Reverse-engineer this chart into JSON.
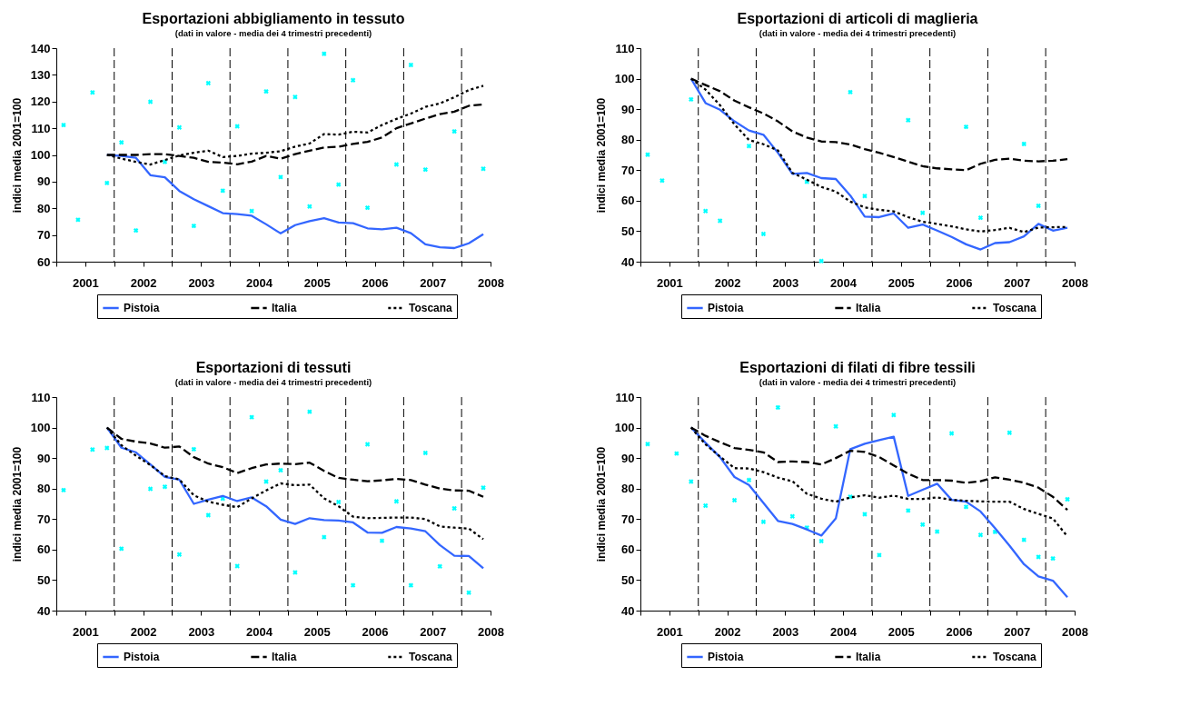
{
  "chart_data": [
    {
      "type": "line",
      "title": "Esportazioni abbigliamento in tessuto",
      "subtitle": "(dati in valore - media dei 4 trimestri precedenti)",
      "ylabel": "indici media 2001=100",
      "x": [
        2000.625,
        2000.875,
        2001.125,
        2001.375,
        2001.625,
        2001.875,
        2002.125,
        2002.375,
        2002.625,
        2002.875,
        2003.125,
        2003.375,
        2003.625,
        2003.875,
        2004.125,
        2004.375,
        2004.625,
        2004.875,
        2005.125,
        2005.375,
        2005.625,
        2005.875,
        2006.125,
        2006.375,
        2006.625,
        2006.875,
        2007.125,
        2007.375,
        2007.625,
        2007.875
      ],
      "xlim": [
        2000.5,
        2008
      ],
      "xticks": [
        {
          "value": 2000.5,
          "label": null
        },
        2001,
        {
          "value": 2001.5,
          "label": null
        },
        2002,
        {
          "value": 2002.5,
          "label": null
        },
        2003,
        {
          "value": 2003.5,
          "label": null
        },
        2004,
        {
          "value": 2004.5,
          "label": null
        },
        2005,
        {
          "value": 2005.5,
          "label": null
        },
        2006,
        {
          "value": 2006.5,
          "label": null
        },
        2007,
        {
          "value": 2007.5,
          "label": null
        },
        2008
      ],
      "ylim": [
        60,
        140
      ],
      "yticks": [
        60,
        70,
        80,
        90,
        100,
        110,
        120,
        130,
        140
      ],
      "ref_lines": [
        {
          "axis": "x",
          "value": 2001.5,
          "color": "#000000",
          "line_style": "dashed"
        },
        {
          "axis": "x",
          "value": 2002.5,
          "color": "#000000",
          "line_style": "dashed"
        },
        {
          "axis": "x",
          "value": 2003.5,
          "color": "#000000",
          "line_style": "dashed"
        },
        {
          "axis": "x",
          "value": 2004.5,
          "color": "#000000",
          "line_style": "dashed"
        },
        {
          "axis": "x",
          "value": 2005.5,
          "color": "#000000",
          "line_style": "dashed"
        },
        {
          "axis": "x",
          "value": 2006.5,
          "color": "#000000",
          "line_style": "dashed"
        },
        {
          "axis": "x",
          "value": 2007.5,
          "color": "#000000",
          "line_style": "dashed"
        }
      ],
      "legend": "bottom",
      "series": [
        {
          "type": "scatter",
          "color": "#00ffff",
          "marker": "cross",
          "values": [
            111.2,
            75.7,
            123.4,
            89.5,
            104.7,
            71.7,
            119.9,
            97.4,
            110.3,
            73.4,
            126.9,
            86.6,
            110.7,
            79,
            123.8,
            91.7,
            121.7,
            80.7,
            137.9,
            88.9,
            128,
            80.2,
            null,
            96.4,
            133.7,
            94.5,
            null,
            108.8,
            null,
            94.8
          ]
        },
        {
          "name": "Pistoia",
          "color": "#3366ff",
          "line_style": "solid",
          "values": [
            null,
            null,
            null,
            100,
            99.6,
            98.9,
            92.4,
            91.6,
            86.5,
            83.4,
            80.8,
            78.2,
            77.8,
            77.2,
            74,
            70.6,
            73.7,
            75.2,
            76.3,
            74.7,
            74.4,
            72.5,
            72.1,
            72.7,
            70.7,
            66.5,
            65.4,
            65.1,
            66.9,
            70.3
          ]
        },
        {
          "name": "Italia",
          "color": "#000000",
          "line_style": "dashed",
          "values": [
            null,
            null,
            null,
            100,
            100,
            100,
            100.3,
            100.3,
            99.6,
            98.9,
            97.4,
            97.1,
            96.5,
            97.5,
            99.6,
            98.6,
            100.3,
            101.6,
            102.8,
            103.1,
            104.1,
            104.9,
            106.5,
            110,
            111.8,
            113.6,
            115.3,
            116.2,
            118.4,
            118.9
          ]
        },
        {
          "name": "Toscana",
          "color": "#000000",
          "line_style": "dotted",
          "values": [
            null,
            null,
            null,
            100,
            98.6,
            97.4,
            96.4,
            98.1,
            99.8,
            100.8,
            101.6,
            99.2,
            99.6,
            100.5,
            100.8,
            101.4,
            103.1,
            104.3,
            107.8,
            107.6,
            108.7,
            108.4,
            111.2,
            113.5,
            115.5,
            118,
            119.3,
            121.6,
            124.3,
            125.9
          ]
        }
      ]
    },
    {
      "type": "line",
      "title": "Esportazioni di articoli di maglieria",
      "subtitle": "(dati in valore - media dei 4 trimestri precedenti)",
      "ylabel": "indici media 2001=100",
      "x": [
        2000.625,
        2000.875,
        2001.125,
        2001.375,
        2001.625,
        2001.875,
        2002.125,
        2002.375,
        2002.625,
        2002.875,
        2003.125,
        2003.375,
        2003.625,
        2003.875,
        2004.125,
        2004.375,
        2004.625,
        2004.875,
        2005.125,
        2005.375,
        2005.625,
        2005.875,
        2006.125,
        2006.375,
        2006.625,
        2006.875,
        2007.125,
        2007.375,
        2007.625,
        2007.875
      ],
      "xlim": [
        2000.5,
        2008
      ],
      "xticks": [
        {
          "value": 2000.5,
          "label": null
        },
        2001,
        {
          "value": 2001.5,
          "label": null
        },
        2002,
        {
          "value": 2002.5,
          "label": null
        },
        2003,
        {
          "value": 2003.5,
          "label": null
        },
        2004,
        {
          "value": 2004.5,
          "label": null
        },
        2005,
        {
          "value": 2005.5,
          "label": null
        },
        2006,
        {
          "value": 2006.5,
          "label": null
        },
        2007,
        {
          "value": 2007.5,
          "label": null
        },
        2008
      ],
      "ylim": [
        40,
        110
      ],
      "yticks": [
        40,
        50,
        60,
        70,
        80,
        90,
        100,
        110
      ],
      "ref_lines": [
        {
          "axis": "x",
          "value": 2001.5,
          "color": "#000000",
          "line_style": "dashed"
        },
        {
          "axis": "x",
          "value": 2002.5,
          "color": "#000000",
          "line_style": "dashed"
        },
        {
          "axis": "x",
          "value": 2003.5,
          "color": "#000000",
          "line_style": "dashed"
        },
        {
          "axis": "x",
          "value": 2004.5,
          "color": "#000000",
          "line_style": "dashed"
        },
        {
          "axis": "x",
          "value": 2005.5,
          "color": "#000000",
          "line_style": "dashed"
        },
        {
          "axis": "x",
          "value": 2006.5,
          "color": "#000000",
          "line_style": "dashed"
        },
        {
          "axis": "x",
          "value": 2007.5,
          "color": "#000000",
          "line_style": "dashed"
        }
      ],
      "legend": "bottom",
      "series": [
        {
          "type": "scatter",
          "color": "#00ffff",
          "marker": "cross",
          "values": [
            75.1,
            66.6,
            null,
            93.2,
            56.6,
            53.4,
            null,
            77.9,
            49.1,
            null,
            null,
            66.2,
            40.2,
            null,
            95.6,
            61.5,
            null,
            null,
            86.4,
            56,
            null,
            null,
            84.2,
            54.4,
            null,
            null,
            78.6,
            58.3,
            null,
            null
          ]
        },
        {
          "name": "Pistoia",
          "color": "#3366ff",
          "line_style": "solid",
          "values": [
            null,
            null,
            null,
            100,
            92,
            89.8,
            86,
            83,
            81.6,
            75.7,
            68.8,
            69.1,
            67.4,
            67.1,
            61.7,
            54.8,
            54.6,
            55.8,
            51.1,
            52.2,
            50.2,
            48.1,
            45.7,
            44,
            46.1,
            46.4,
            48.3,
            52.4,
            50.2,
            51.1
          ]
        },
        {
          "name": "Italia",
          "color": "#000000",
          "line_style": "dashed",
          "values": [
            null,
            null,
            null,
            100,
            97.9,
            95.9,
            92.8,
            90.6,
            88.6,
            86,
            82.7,
            80.7,
            79.4,
            79.2,
            78.4,
            76.9,
            75.7,
            74.3,
            72.8,
            71.3,
            70.6,
            70.3,
            70,
            72.1,
            73.4,
            73.8,
            73.1,
            72.9,
            73.1,
            73.6
          ]
        },
        {
          "name": "Toscana",
          "color": "#000000",
          "line_style": "dotted",
          "values": [
            null,
            null,
            null,
            100,
            96.4,
            91.3,
            85,
            79.9,
            78.5,
            76.5,
            69.1,
            66.9,
            64.5,
            63,
            59.7,
            57.8,
            57,
            56.5,
            54.6,
            53.1,
            52.4,
            51.6,
            50.6,
            49.9,
            50.4,
            51.1,
            49.7,
            51.2,
            51.3,
            51.4
          ]
        }
      ]
    },
    {
      "type": "line",
      "title": "Esportazioni di tessuti",
      "subtitle": "(dati in valore - media dei 4 trimestri precedenti)",
      "ylabel": "indici media 2001=100",
      "x": [
        2000.625,
        2000.875,
        2001.125,
        2001.375,
        2001.625,
        2001.875,
        2002.125,
        2002.375,
        2002.625,
        2002.875,
        2003.125,
        2003.375,
        2003.625,
        2003.875,
        2004.125,
        2004.375,
        2004.625,
        2004.875,
        2005.125,
        2005.375,
        2005.625,
        2005.875,
        2006.125,
        2006.375,
        2006.625,
        2006.875,
        2007.125,
        2007.375,
        2007.625,
        2007.875
      ],
      "xlim": [
        2000.5,
        2008
      ],
      "xticks": [
        {
          "value": 2000.5,
          "label": null
        },
        2001,
        {
          "value": 2001.5,
          "label": null
        },
        2002,
        {
          "value": 2002.5,
          "label": null
        },
        2003,
        {
          "value": 2003.5,
          "label": null
        },
        2004,
        {
          "value": 2004.5,
          "label": null
        },
        2005,
        {
          "value": 2005.5,
          "label": null
        },
        2006,
        {
          "value": 2006.5,
          "label": null
        },
        2007,
        {
          "value": 2007.5,
          "label": null
        },
        2008
      ],
      "ylim": [
        40,
        110
      ],
      "yticks": [
        40,
        50,
        60,
        70,
        80,
        90,
        100,
        110
      ],
      "ref_lines": [
        {
          "axis": "x",
          "value": 2001.5,
          "color": "#000000",
          "line_style": "dashed"
        },
        {
          "axis": "x",
          "value": 2002.5,
          "color": "#000000",
          "line_style": "dashed"
        },
        {
          "axis": "x",
          "value": 2003.5,
          "color": "#000000",
          "line_style": "dashed"
        },
        {
          "axis": "x",
          "value": 2004.5,
          "color": "#000000",
          "line_style": "dashed"
        },
        {
          "axis": "x",
          "value": 2005.5,
          "color": "#000000",
          "line_style": "dashed"
        },
        {
          "axis": "x",
          "value": 2006.5,
          "color": "#000000",
          "line_style": "dashed"
        },
        {
          "axis": "x",
          "value": 2007.5,
          "color": "#000000",
          "line_style": "dashed"
        }
      ],
      "legend": "bottom",
      "series": [
        {
          "type": "scatter",
          "color": "#00ffff",
          "marker": "cross",
          "values": [
            79.5,
            null,
            92.8,
            93.3,
            60.3,
            null,
            79.9,
            80.6,
            58.4,
            92.9,
            71.3,
            76.7,
            54.6,
            103.4,
            82.3,
            86,
            52.5,
            105.2,
            64.1,
            75.6,
            48.3,
            94.5,
            62.9,
            75.8,
            48.3,
            91.7,
            54.5,
            73.5,
            45.9,
            80.3
          ]
        },
        {
          "name": "Pistoia",
          "color": "#3366ff",
          "line_style": "solid",
          "values": [
            null,
            null,
            null,
            100,
            93.4,
            91.9,
            87.9,
            83.8,
            82.9,
            75,
            76.4,
            77.6,
            75.9,
            77.1,
            74.2,
            69.8,
            68.4,
            70.3,
            69.7,
            69.5,
            68.9,
            65.6,
            65.5,
            67.4,
            66.9,
            66,
            61.5,
            58,
            57.9,
            53.9
          ]
        },
        {
          "name": "Italia",
          "color": "#000000",
          "line_style": "dashed",
          "values": [
            null,
            null,
            null,
            100,
            96.3,
            95.4,
            94.8,
            93.4,
            93.8,
            90.3,
            88.2,
            87,
            85.1,
            86.7,
            87.9,
            88.2,
            88,
            88.5,
            85.8,
            83.5,
            82.9,
            82.4,
            82.7,
            83.2,
            82.8,
            81.3,
            80,
            79.4,
            79.3,
            77.3
          ]
        },
        {
          "name": "Toscana",
          "color": "#000000",
          "line_style": "dotted",
          "values": [
            null,
            null,
            null,
            100,
            94.2,
            90.8,
            87.7,
            84.1,
            83,
            77.8,
            75.7,
            74.7,
            73.9,
            76.8,
            79.4,
            81.7,
            81.1,
            81.3,
            76.8,
            74.2,
            70.8,
            70.3,
            70.4,
            70.5,
            70.5,
            70,
            67.6,
            67.2,
            66.9,
            63.4
          ]
        }
      ]
    },
    {
      "type": "line",
      "title": "Esportazioni di filati di fibre tessili",
      "subtitle": "(dati in valore - media dei 4 trimestri precedenti)",
      "ylabel": "indici media 2001=100",
      "x": [
        2000.625,
        2000.875,
        2001.125,
        2001.375,
        2001.625,
        2001.875,
        2002.125,
        2002.375,
        2002.625,
        2002.875,
        2003.125,
        2003.375,
        2003.625,
        2003.875,
        2004.125,
        2004.375,
        2004.625,
        2004.875,
        2005.125,
        2005.375,
        2005.625,
        2005.875,
        2006.125,
        2006.375,
        2006.625,
        2006.875,
        2007.125,
        2007.375,
        2007.625,
        2007.875
      ],
      "xlim": [
        2000.5,
        2008
      ],
      "xticks": [
        {
          "value": 2000.5,
          "label": null
        },
        2001,
        {
          "value": 2001.5,
          "label": null
        },
        2002,
        {
          "value": 2002.5,
          "label": null
        },
        2003,
        {
          "value": 2003.5,
          "label": null
        },
        2004,
        {
          "value": 2004.5,
          "label": null
        },
        2005,
        {
          "value": 2005.5,
          "label": null
        },
        2006,
        {
          "value": 2006.5,
          "label": null
        },
        2007,
        {
          "value": 2007.5,
          "label": null
        },
        2008
      ],
      "ylim": [
        40,
        110
      ],
      "yticks": [
        40,
        50,
        60,
        70,
        80,
        90,
        100,
        110
      ],
      "ref_lines": [
        {
          "axis": "x",
          "value": 2001.5,
          "color": "#000000",
          "line_style": "dashed"
        },
        {
          "axis": "x",
          "value": 2002.5,
          "color": "#000000",
          "line_style": "dashed"
        },
        {
          "axis": "x",
          "value": 2003.5,
          "color": "#000000",
          "line_style": "dashed"
        },
        {
          "axis": "x",
          "value": 2004.5,
          "color": "#000000",
          "line_style": "dashed"
        },
        {
          "axis": "x",
          "value": 2005.5,
          "color": "#000000",
          "line_style": "dashed"
        },
        {
          "axis": "x",
          "value": 2006.5,
          "color": "#000000",
          "line_style": "dashed"
        },
        {
          "axis": "x",
          "value": 2007.5,
          "color": "#000000",
          "line_style": "dashed"
        }
      ],
      "legend": "bottom",
      "series": [
        {
          "type": "scatter",
          "color": "#00ffff",
          "marker": "cross",
          "values": [
            94.6,
            null,
            91.5,
            82.3,
            74.4,
            null,
            76.2,
            82.8,
            69.1,
            106.6,
            70.9,
            67.2,
            62.8,
            100.4,
            77.3,
            71.6,
            58.2,
            104.1,
            72.8,
            68.2,
            65.9,
            98.1,
            74,
            64.8,
            65.8,
            98.3,
            63.2,
            57.6,
            57.1,
            76.5
          ]
        },
        {
          "name": "Pistoia",
          "color": "#3366ff",
          "line_style": "solid",
          "values": [
            null,
            null,
            null,
            100,
            95,
            90.3,
            83.8,
            81.2,
            75.3,
            69.4,
            68.4,
            66.6,
            64.6,
            70.2,
            92.9,
            94.7,
            95.9,
            97,
            77.6,
            79.6,
            81.6,
            76.3,
            75.7,
            72.5,
            67,
            61.3,
            55.2,
            51.2,
            49.8,
            44.4
          ]
        },
        {
          "name": "Italia",
          "color": "#000000",
          "line_style": "dashed",
          "values": [
            null,
            null,
            null,
            100,
            97.3,
            95.2,
            93.3,
            92.7,
            91.9,
            88.7,
            88.9,
            88.7,
            87.9,
            90,
            92.4,
            92,
            90.3,
            87.6,
            84.9,
            82.8,
            82.8,
            82.6,
            81.9,
            82.4,
            83.7,
            82.9,
            81.9,
            80.3,
            77.3,
            73
          ]
        },
        {
          "name": "Toscana",
          "color": "#000000",
          "line_style": "dotted",
          "values": [
            null,
            null,
            null,
            100,
            94.5,
            90.5,
            86.7,
            86.6,
            85.4,
            83.6,
            82.4,
            78.3,
            76.7,
            75.7,
            77.1,
            77.8,
            77,
            77.7,
            76.6,
            76.6,
            77.1,
            76.3,
            76,
            75.8,
            75.7,
            75.7,
            73.3,
            71.7,
            70.2,
            64.3
          ]
        }
      ]
    }
  ]
}
